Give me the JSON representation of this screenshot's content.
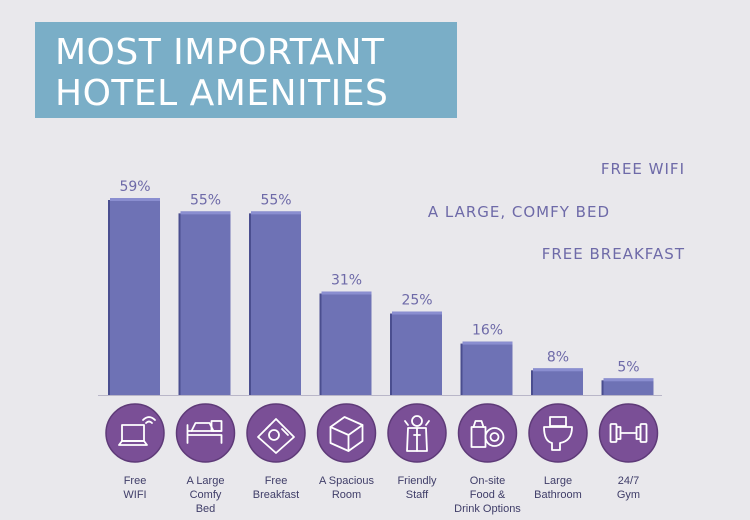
{
  "title": {
    "line1": "MOST IMPORTANT",
    "line2": "HOTEL AMENITIES"
  },
  "notes": [
    "FREE WIFI",
    "A LARGE, COMFY BED",
    "FREE BREAKFAST"
  ],
  "colors": {
    "bar": "#6e72b5",
    "bar_top": "#8a8ed0",
    "bar_side": "#4a4e8f",
    "icon_circle": "#7a4f96",
    "icon_ring": "#5e3a78",
    "value_text": "#6e6aa8",
    "banner": "#7aaec7"
  },
  "chart_data": {
    "type": "bar",
    "title": "MOST IMPORTANT HOTEL AMENITIES",
    "categories": [
      "Free WIFI",
      "A Large Comfy Bed",
      "Free Breakfast",
      "A Spacious Room",
      "Friendly Staff",
      "On-site Food & Drink Options",
      "Large Bathroom",
      "24/7 Gym"
    ],
    "category_lines": [
      [
        "Free",
        "WIFI"
      ],
      [
        "A Large",
        "Comfy",
        "Bed"
      ],
      [
        "Free",
        "Breakfast"
      ],
      [
        "A Spacious",
        "Room"
      ],
      [
        "Friendly",
        "Staff"
      ],
      [
        "On-site",
        "Food &",
        "Drink Options"
      ],
      [
        "Large",
        "Bathroom"
      ],
      [
        "24/7",
        "Gym"
      ]
    ],
    "values": [
      59,
      55,
      55,
      31,
      25,
      16,
      8,
      5
    ],
    "value_labels": [
      "59%",
      "55%",
      "55%",
      "31%",
      "25%",
      "16%",
      "8%",
      "5%"
    ],
    "icons": [
      "wifi-laptop-icon",
      "bed-icon",
      "breakfast-icon",
      "room-icon",
      "staff-icon",
      "food-drink-icon",
      "bathroom-icon",
      "gym-icon"
    ],
    "ylim": [
      0,
      59
    ],
    "xlabel": "",
    "ylabel": ""
  }
}
